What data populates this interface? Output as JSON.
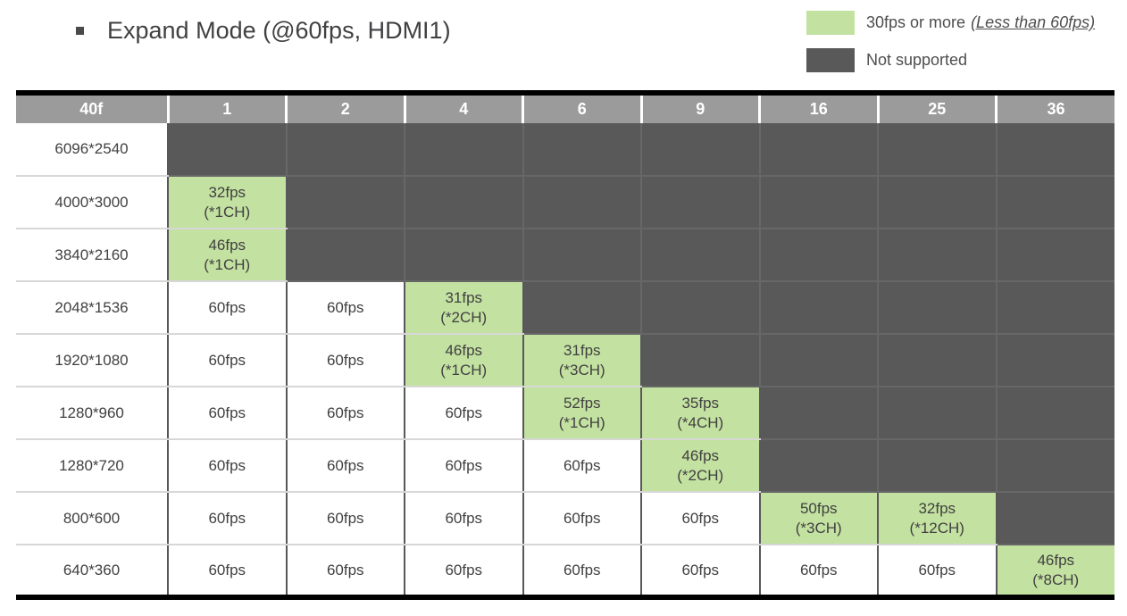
{
  "title": "Expand Mode (@60fps, HDMI1)",
  "legend": {
    "reduced": {
      "label": "30fps or more",
      "note": "(Less than 60fps)",
      "color": "#c3e1a0"
    },
    "not_supported": {
      "label": "Not supported",
      "color": "#595959"
    }
  },
  "colors": {
    "green_cell": "#c3e1a0",
    "dark_cell": "#595959",
    "header_bg": "#9b9b9b",
    "border_dark": "#58585a",
    "border_light": "#d7d7d7",
    "dark_grid": "#676767",
    "text": "#414042"
  },
  "chart_data": {
    "type": "table",
    "title": "Expand Mode (@60fps, HDMI1)",
    "corner_label": "40f",
    "column_headers": [
      "1",
      "2",
      "4",
      "6",
      "9",
      "16",
      "25",
      "36"
    ],
    "cell_encoding": {
      "NS": "Not supported (dark cell)",
      "60fps": "full frame rate (white cell)",
      "Nfps (*NCH)": "less than 60fps (green cell)"
    },
    "rows": [
      {
        "label": "6096*2540",
        "cells": [
          "NS",
          "NS",
          "NS",
          "NS",
          "NS",
          "NS",
          "NS",
          "NS"
        ]
      },
      {
        "label": "4000*3000",
        "cells": [
          "32fps (*1CH)",
          "NS",
          "NS",
          "NS",
          "NS",
          "NS",
          "NS",
          "NS"
        ]
      },
      {
        "label": "3840*2160",
        "cells": [
          "46fps (*1CH)",
          "NS",
          "NS",
          "NS",
          "NS",
          "NS",
          "NS",
          "NS"
        ]
      },
      {
        "label": "2048*1536",
        "cells": [
          "60fps",
          "60fps",
          "31fps (*2CH)",
          "NS",
          "NS",
          "NS",
          "NS",
          "NS"
        ]
      },
      {
        "label": "1920*1080",
        "cells": [
          "60fps",
          "60fps",
          "46fps (*1CH)",
          "31fps (*3CH)",
          "NS",
          "NS",
          "NS",
          "NS"
        ]
      },
      {
        "label": "1280*960",
        "cells": [
          "60fps",
          "60fps",
          "60fps",
          "52fps (*1CH)",
          "35fps (*4CH)",
          "NS",
          "NS",
          "NS"
        ]
      },
      {
        "label": "1280*720",
        "cells": [
          "60fps",
          "60fps",
          "60fps",
          "60fps",
          "46fps (*2CH)",
          "NS",
          "NS",
          "NS"
        ]
      },
      {
        "label": "800*600",
        "cells": [
          "60fps",
          "60fps",
          "60fps",
          "60fps",
          "60fps",
          "50fps (*3CH)",
          "32fps (*12CH)",
          "NS"
        ]
      },
      {
        "label": "640*360",
        "cells": [
          "60fps",
          "60fps",
          "60fps",
          "60fps",
          "60fps",
          "60fps",
          "60fps",
          "46fps (*8CH)"
        ]
      }
    ],
    "legend": [
      {
        "swatch": "green",
        "label": "30fps or more (Less than 60fps)"
      },
      {
        "swatch": "dark",
        "label": "Not supported"
      }
    ]
  }
}
